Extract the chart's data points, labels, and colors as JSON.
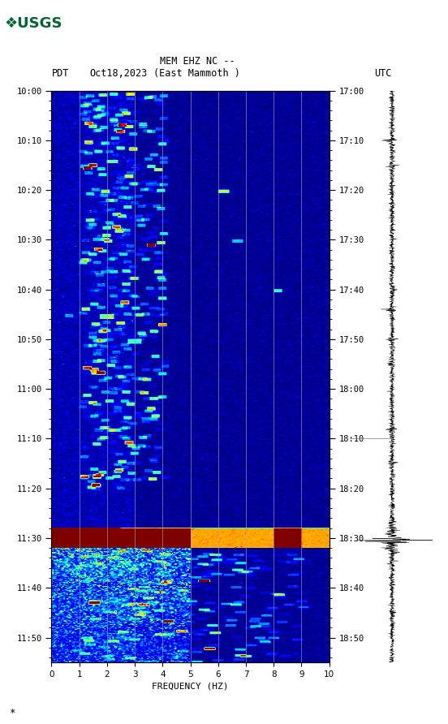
{
  "title_line1": "MEM EHZ NC --",
  "title_line2": "(East Mammoth )",
  "left_label": "PDT",
  "date_label": "Oct18,2023",
  "right_label": "UTC",
  "xlabel": "FREQUENCY (HZ)",
  "freq_min": 0,
  "freq_max": 10,
  "pdt_ticks": [
    "10:00",
    "10:10",
    "10:20",
    "10:30",
    "10:40",
    "10:50",
    "11:00",
    "11:10",
    "11:20",
    "11:30",
    "11:40",
    "11:50"
  ],
  "utc_ticks": [
    "17:00",
    "17:10",
    "17:20",
    "17:30",
    "17:40",
    "17:50",
    "18:00",
    "18:10",
    "18:20",
    "18:30",
    "18:40",
    "18:50"
  ],
  "vertical_grid_positions": [
    1,
    2,
    3,
    4,
    5,
    6,
    7,
    8,
    9
  ],
  "fig_width": 5.52,
  "fig_height": 8.92,
  "total_minutes": 115,
  "eq_minute": 90
}
